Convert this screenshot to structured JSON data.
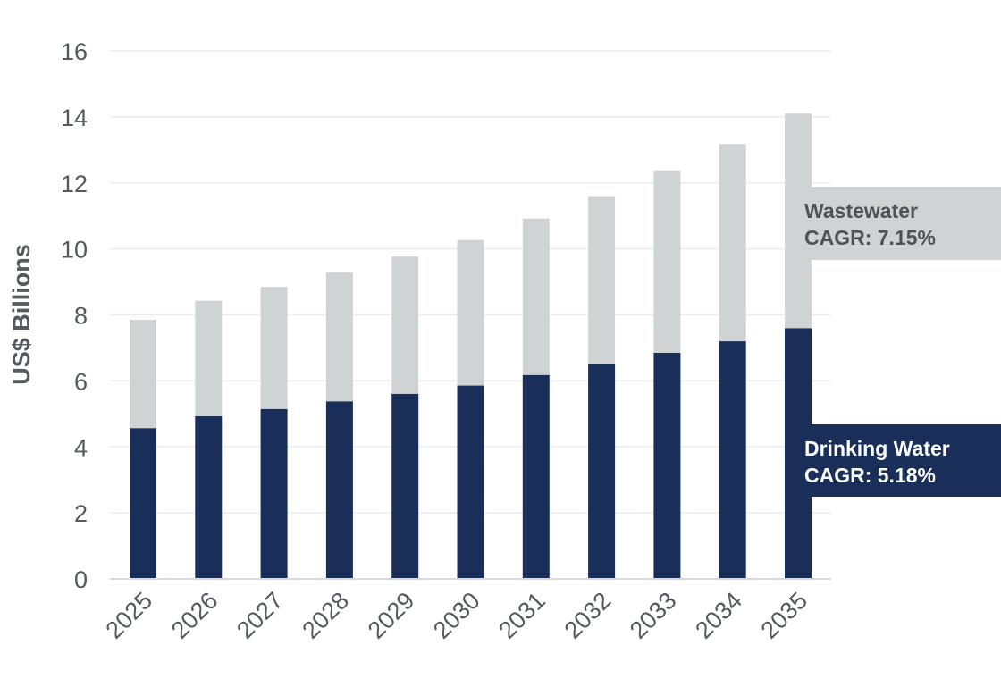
{
  "chart_data": {
    "type": "bar",
    "stacked": true,
    "title": "",
    "xlabel": "",
    "ylabel": "US$ Billions",
    "ylim": [
      0,
      16
    ],
    "yticks": [
      0,
      2,
      4,
      6,
      8,
      10,
      12,
      14,
      16
    ],
    "grid": true,
    "categories": [
      "2025",
      "2026",
      "2027",
      "2028",
      "2029",
      "2030",
      "2031",
      "2032",
      "2033",
      "2034",
      "2035"
    ],
    "series": [
      {
        "name": "Drinking Water",
        "color": "#1a2e5a",
        "values": [
          4.57,
          4.93,
          5.15,
          5.38,
          5.61,
          5.86,
          6.18,
          6.5,
          6.85,
          7.2,
          7.6
        ]
      },
      {
        "name": "Wastewater",
        "color": "#d0d3d4",
        "values": [
          3.28,
          3.5,
          3.7,
          3.92,
          4.16,
          4.41,
          4.74,
          5.1,
          5.53,
          5.98,
          6.5
        ]
      }
    ],
    "annotations": {
      "wastewater": {
        "line1": "Wastewater",
        "line2": "CAGR: 7.15%"
      },
      "drinking_water": {
        "line1": "Drinking Water",
        "line2": "CAGR: 5.18%"
      }
    }
  }
}
